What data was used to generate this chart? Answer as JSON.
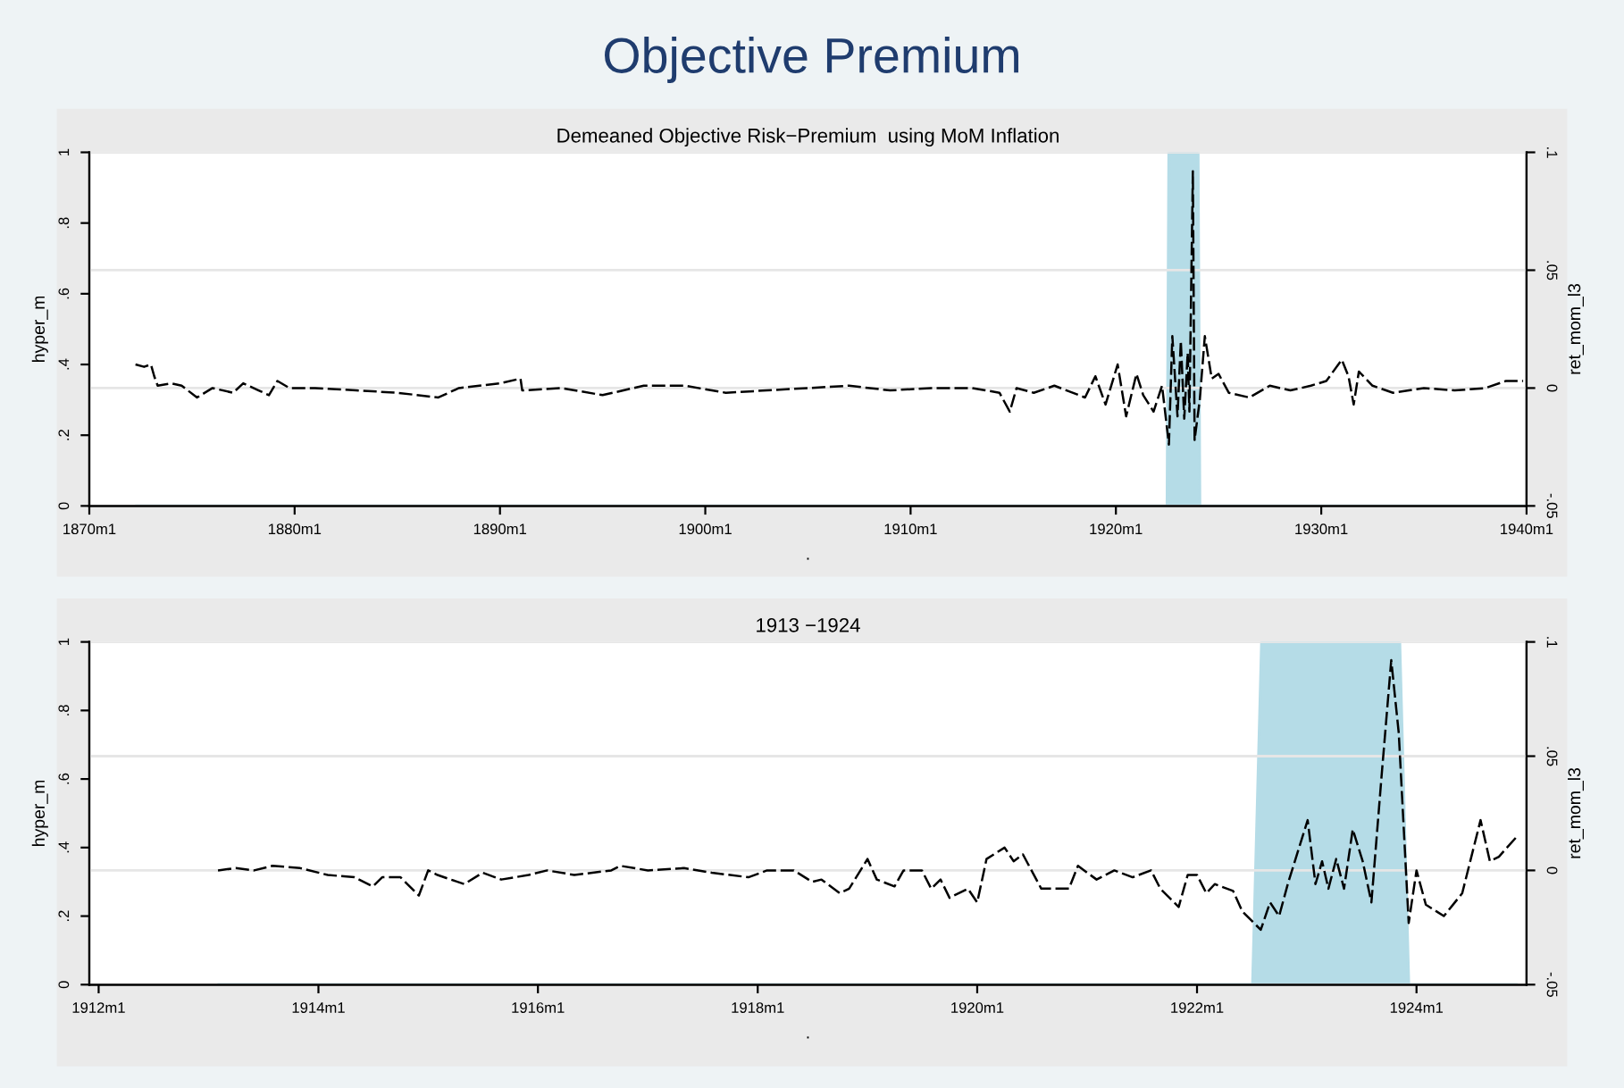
{
  "chart_data": [
    {
      "type": "line",
      "annotations": [
        "Objective Premium"
      ],
      "title": "Demeaned Objective Risk−Premium  using MoM Inflation",
      "xlabel": ".",
      "ylabel": "hyper_m",
      "y2label": "ret_mom_l3",
      "xlim": [
        "1870-01",
        "1940-01"
      ],
      "xticks": [
        {
          "value": "1870-01",
          "label": "1870m1"
        },
        {
          "value": "1880-01",
          "label": "1880m1"
        },
        {
          "value": "1890-01",
          "label": "1890m1"
        },
        {
          "value": "1900-01",
          "label": "1900m1"
        },
        {
          "value": "1910-01",
          "label": "1910m1"
        },
        {
          "value": "1920-01",
          "label": "1920m1"
        },
        {
          "value": "1930-01",
          "label": "1930m1"
        },
        {
          "value": "1940-01",
          "label": "1940m1"
        }
      ],
      "ylim": [
        0,
        1
      ],
      "yticks": [
        0,
        {
          "value": 0.2,
          "label": ".2"
        },
        {
          "value": 0.4,
          "label": ".4"
        },
        {
          "value": 0.6,
          "label": ".6"
        },
        {
          "value": 0.8,
          "label": ".8"
        },
        1
      ],
      "y2lim": [
        -0.05,
        0.1
      ],
      "y2ticks": [
        {
          "value": -0.05,
          "label": "-.05"
        },
        0,
        {
          "value": 0.05,
          "label": ".05"
        },
        {
          "value": 0.1,
          "label": ".1"
        }
      ],
      "grid": "y2",
      "series": [
        {
          "type": "area",
          "color": "#b5dce7",
          "x": [
            "1872-04",
            "1922-07",
            "1922-08",
            "1924-01",
            "1924-02",
            "1939-12"
          ],
          "values": [
            0,
            0,
            1,
            1,
            0,
            0
          ]
        },
        {
          "type": "line",
          "axis": "y2",
          "color": "#000000",
          "line_style": "dashed",
          "x": [
            "1872-04",
            "1872-09",
            "1873-01",
            "1873-03",
            "1873-05",
            "1874-01",
            "1874-07",
            "1875-04",
            "1876-01",
            "1877-01",
            "1877-07",
            "1878-04",
            "1878-10",
            "1879-03",
            "1879-10",
            "1881-01",
            "1883-01",
            "1885-01",
            "1887-01",
            "1888-01",
            "1890-01",
            "1891-01",
            "1891-02",
            "1893-01",
            "1895-01",
            "1897-01",
            "1899-01",
            "1901-01",
            "1903-01",
            "1905-01",
            "1907-01",
            "1909-01",
            "1911-01",
            "1913-01",
            "1914-05",
            "1914-11",
            "1915-03",
            "1916-01",
            "1917-01",
            "1918-07",
            "1919-01",
            "1919-07",
            "1920-02",
            "1920-07",
            "1921-01",
            "1921-05",
            "1921-11",
            "1922-04",
            "1922-08",
            "1922-10",
            "1923-01",
            "1923-03",
            "1923-05",
            "1923-07",
            "1923-08",
            "1923-10",
            "1923-11",
            "1924-02",
            "1924-05",
            "1924-09",
            "1925-01",
            "1925-07",
            "1926-07",
            "1927-07",
            "1928-07",
            "1929-07",
            "1930-04",
            "1931-01",
            "1931-05",
            "1931-08",
            "1931-11",
            "1932-07",
            "1933-07",
            "1935-01",
            "1936-07",
            "1938-01",
            "1939-01",
            "1939-11"
          ],
          "values": [
            0.01,
            0.009,
            0.01,
            0.005,
            0.001,
            0.002,
            0.001,
            -0.004,
            0.0,
            -0.002,
            0.002,
            -0.001,
            -0.003,
            0.003,
            0.0,
            0.0,
            -0.001,
            -0.002,
            -0.004,
            0.0,
            0.002,
            0.004,
            -0.001,
            0.0,
            -0.003,
            0.001,
            0.001,
            -0.002,
            -0.001,
            0.0,
            0.001,
            -0.001,
            0.0,
            0.0,
            -0.002,
            -0.01,
            0.0,
            -0.002,
            0.001,
            -0.004,
            0.005,
            -0.007,
            0.01,
            -0.012,
            0.006,
            -0.003,
            -0.01,
            0.001,
            -0.024,
            0.022,
            -0.012,
            0.02,
            -0.013,
            0.015,
            -0.01,
            0.092,
            -0.022,
            -0.005,
            0.022,
            0.004,
            0.006,
            -0.002,
            -0.004,
            0.001,
            -0.001,
            0.001,
            0.003,
            0.012,
            0.005,
            -0.007,
            0.007,
            0.001,
            -0.002,
            0.0,
            -0.001,
            0.0,
            0.003,
            0.003
          ]
        }
      ]
    },
    {
      "type": "line",
      "title": "1913 −1924",
      "xlabel": ".",
      "ylabel": "hyper_m",
      "y2label": "ret_mom_l3",
      "xlim": [
        "1911-12",
        "1925-01"
      ],
      "xticks": [
        {
          "value": "1912-01",
          "label": "1912m1"
        },
        {
          "value": "1914-01",
          "label": "1914m1"
        },
        {
          "value": "1916-01",
          "label": "1916m1"
        },
        {
          "value": "1918-01",
          "label": "1918m1"
        },
        {
          "value": "1920-01",
          "label": "1920m1"
        },
        {
          "value": "1922-01",
          "label": "1922m1"
        },
        {
          "value": "1924-01",
          "label": "1924m1"
        }
      ],
      "ylim": [
        0,
        1
      ],
      "yticks": [
        0,
        {
          "value": 0.2,
          "label": ".2"
        },
        {
          "value": 0.4,
          "label": ".4"
        },
        {
          "value": 0.6,
          "label": ".6"
        },
        {
          "value": 0.8,
          "label": ".8"
        },
        1
      ],
      "y2lim": [
        -0.05,
        0.1
      ],
      "y2ticks": [
        {
          "value": -0.05,
          "label": "-.05"
        },
        0,
        {
          "value": 0.05,
          "label": ".05"
        },
        {
          "value": 0.1,
          "label": ".1"
        }
      ],
      "grid": "y2",
      "series": [
        {
          "type": "area",
          "color": "#b5dce7",
          "x": [
            "1913-02",
            "1922-07-05",
            "1922-08-04",
            "1923-11-06",
            "1923-12-06",
            "1924-12"
          ],
          "values": [
            0,
            0,
            1,
            1,
            0,
            0
          ]
        },
        {
          "type": "line",
          "axis": "y2",
          "color": "#000000",
          "line_style": "dashed",
          "x": [
            "1913-02",
            "1913-04",
            "1913-06",
            "1913-08",
            "1913-11",
            "1914-02",
            "1914-05",
            "1914-07",
            "1914-08",
            "1914-10",
            "1914-12",
            "1915-01",
            "1915-02",
            "1915-05",
            "1915-07",
            "1915-09",
            "1915-12",
            "1916-02",
            "1916-05",
            "1916-09",
            "1916-10",
            "1917-01",
            "1917-05",
            "1917-08",
            "1917-12",
            "1918-02",
            "1918-05",
            "1918-07",
            "1918-08",
            "1918-10",
            "1918-11",
            "1919-01",
            "1919-02",
            "1919-04",
            "1919-05",
            "1919-07",
            "1919-08",
            "1919-09",
            "1919-10",
            "1919-12",
            "1920-01",
            "1920-02",
            "1920-04",
            "1920-05",
            "1920-06",
            "1920-08",
            "1920-10",
            "1920-11",
            "1920-12",
            "1921-02",
            "1921-04",
            "1921-06",
            "1921-08",
            "1921-09",
            "1921-11",
            "1921-12",
            "1922-01",
            "1922-02",
            "1922-03",
            "1922-05",
            "1922-06",
            "1922-08",
            "1922-09",
            "1922-10",
            "1922-11",
            "1923-01-04",
            "1923-01-30",
            "1923-02-21",
            "1923-03-14",
            "1923-04-09",
            "1923-05-05",
            "1923-06-03",
            "1923-07-06",
            "1923-08-04",
            "1923-09-06",
            "1923-10-09",
            "1923-11-03",
            "1923-12-06",
            "1924-01",
            "1924-02",
            "1924-04",
            "1924-06",
            "1924-08",
            "1924-09",
            "1924-10",
            "1924-12"
          ],
          "values": [
            0.0,
            0.001,
            0.0,
            0.002,
            0.001,
            -0.002,
            -0.003,
            -0.007,
            -0.003,
            -0.003,
            -0.011,
            0.0,
            -0.002,
            -0.006,
            -0.001,
            -0.004,
            -0.002,
            0.0,
            -0.002,
            0.0,
            0.002,
            0.0,
            0.001,
            -0.001,
            -0.003,
            0.0,
            0.0,
            -0.005,
            -0.004,
            -0.01,
            -0.008,
            0.005,
            -0.004,
            -0.007,
            0.0,
            0.0,
            -0.008,
            -0.004,
            -0.012,
            -0.008,
            -0.014,
            0.005,
            0.01,
            0.004,
            0.007,
            -0.008,
            -0.008,
            -0.008,
            0.002,
            -0.004,
            0.0,
            -0.003,
            0.0,
            -0.008,
            -0.016,
            -0.002,
            -0.002,
            -0.01,
            -0.006,
            -0.009,
            -0.018,
            -0.026,
            -0.014,
            -0.02,
            -0.005,
            0.022,
            -0.006,
            0.004,
            -0.008,
            0.005,
            -0.008,
            0.018,
            0.004,
            -0.014,
            0.04,
            0.092,
            0.06,
            -0.023,
            0.0,
            -0.015,
            -0.02,
            -0.01,
            0.022,
            0.004,
            0.006,
            0.015
          ]
        }
      ]
    }
  ]
}
